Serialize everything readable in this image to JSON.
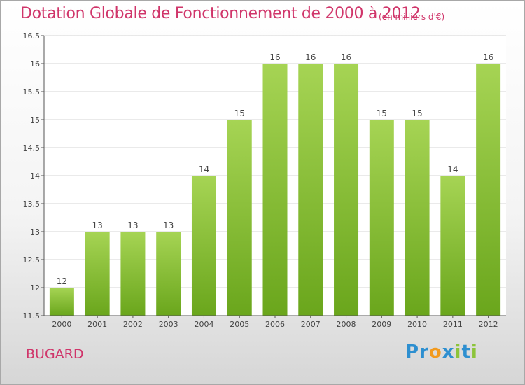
{
  "title": "Dotation Globale de Fonctionnement de 2000 à 2012",
  "unit": "(en milliers d'€)",
  "commune": "BUGARD",
  "logo": {
    "text": "Proxiti",
    "letters": [
      {
        "ch": "P",
        "color": "#2d8fd0"
      },
      {
        "ch": "r",
        "color": "#2d8fd0"
      },
      {
        "ch": "o",
        "color": "#f29a1e"
      },
      {
        "ch": "x",
        "color": "#2d8fd0"
      },
      {
        "ch": "i",
        "color": "#8cc43a"
      },
      {
        "ch": "t",
        "color": "#2d8fd0"
      },
      {
        "ch": "i",
        "color": "#8cc43a"
      }
    ]
  },
  "colors": {
    "bar_light": "#a6d454",
    "bar_dark": "#6aa61c",
    "title": "#d0356a",
    "grid": "#d4d4d4",
    "axis": "#555555"
  },
  "chart_data": {
    "type": "bar",
    "categories": [
      "2000",
      "2001",
      "2002",
      "2003",
      "2004",
      "2005",
      "2006",
      "2007",
      "2008",
      "2009",
      "2010",
      "2011",
      "2012"
    ],
    "values": [
      12,
      13,
      13,
      13,
      14,
      15,
      16,
      16,
      16,
      15,
      15,
      14,
      16
    ],
    "value_labels": [
      "12",
      "13",
      "13",
      "13",
      "14",
      "15",
      "16",
      "16",
      "16",
      "15",
      "15",
      "14",
      "16"
    ],
    "ylim": [
      11.5,
      16.5
    ],
    "yticks": [
      11.5,
      12,
      12.5,
      13,
      13.5,
      14,
      14.5,
      15,
      15.5,
      16,
      16.5
    ],
    "ytick_labels": [
      "11.5",
      "12",
      "12.5",
      "13",
      "13.5",
      "14",
      "14.5",
      "15",
      "15.5",
      "16",
      "16.5"
    ],
    "grid": true,
    "title": "Dotation Globale de Fonctionnement de 2000 à 2012",
    "xlabel": "",
    "ylabel": ""
  }
}
